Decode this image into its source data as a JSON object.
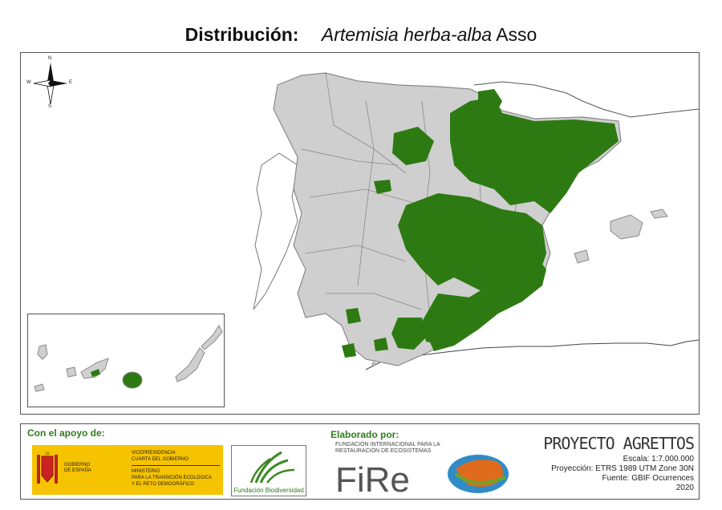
{
  "title": {
    "label": "Distribución:",
    "species": "Artemisia herba-alba",
    "author": "Asso"
  },
  "compass": {
    "n": "N",
    "s": "S",
    "e": "E",
    "w": "W"
  },
  "map": {
    "land_color": "#cfcfcf",
    "presence_color": "#2d7a12",
    "border_color": "#8a8a8a"
  },
  "footer": {
    "support_label": "Con el apoyo de:",
    "gov": {
      "left_lines": [
        "GOBIERNO",
        "DE ESPAÑA"
      ],
      "right_top": [
        "VICEPRESIDENCIA",
        "CUARTA DEL GOBIERNO"
      ],
      "right_bottom": [
        "MINISTERIO",
        "PARA LA TRANSICIÓN ECOLÓGICA",
        "Y EL RETO DEMOGRÁFICO"
      ]
    },
    "biodiversidad_label": "Fundación Biodiversidad",
    "elaborado_label": "Elaborado por:",
    "fire": {
      "line1": "FUNDACIÓN INTERNACIONAL PARA LA",
      "line2": "RESTAURACIÓN DE ECOSISTEMAS",
      "wordmark": "FiRe"
    },
    "project": {
      "name": "PROYECTO AGRETTOS",
      "scale": "Escala: 1:7.000.000",
      "projection": "Proyección: ETRS 1989 UTM Zone 30N",
      "source": "Fuente: GBIF Ocurrences",
      "year": "2020"
    }
  }
}
